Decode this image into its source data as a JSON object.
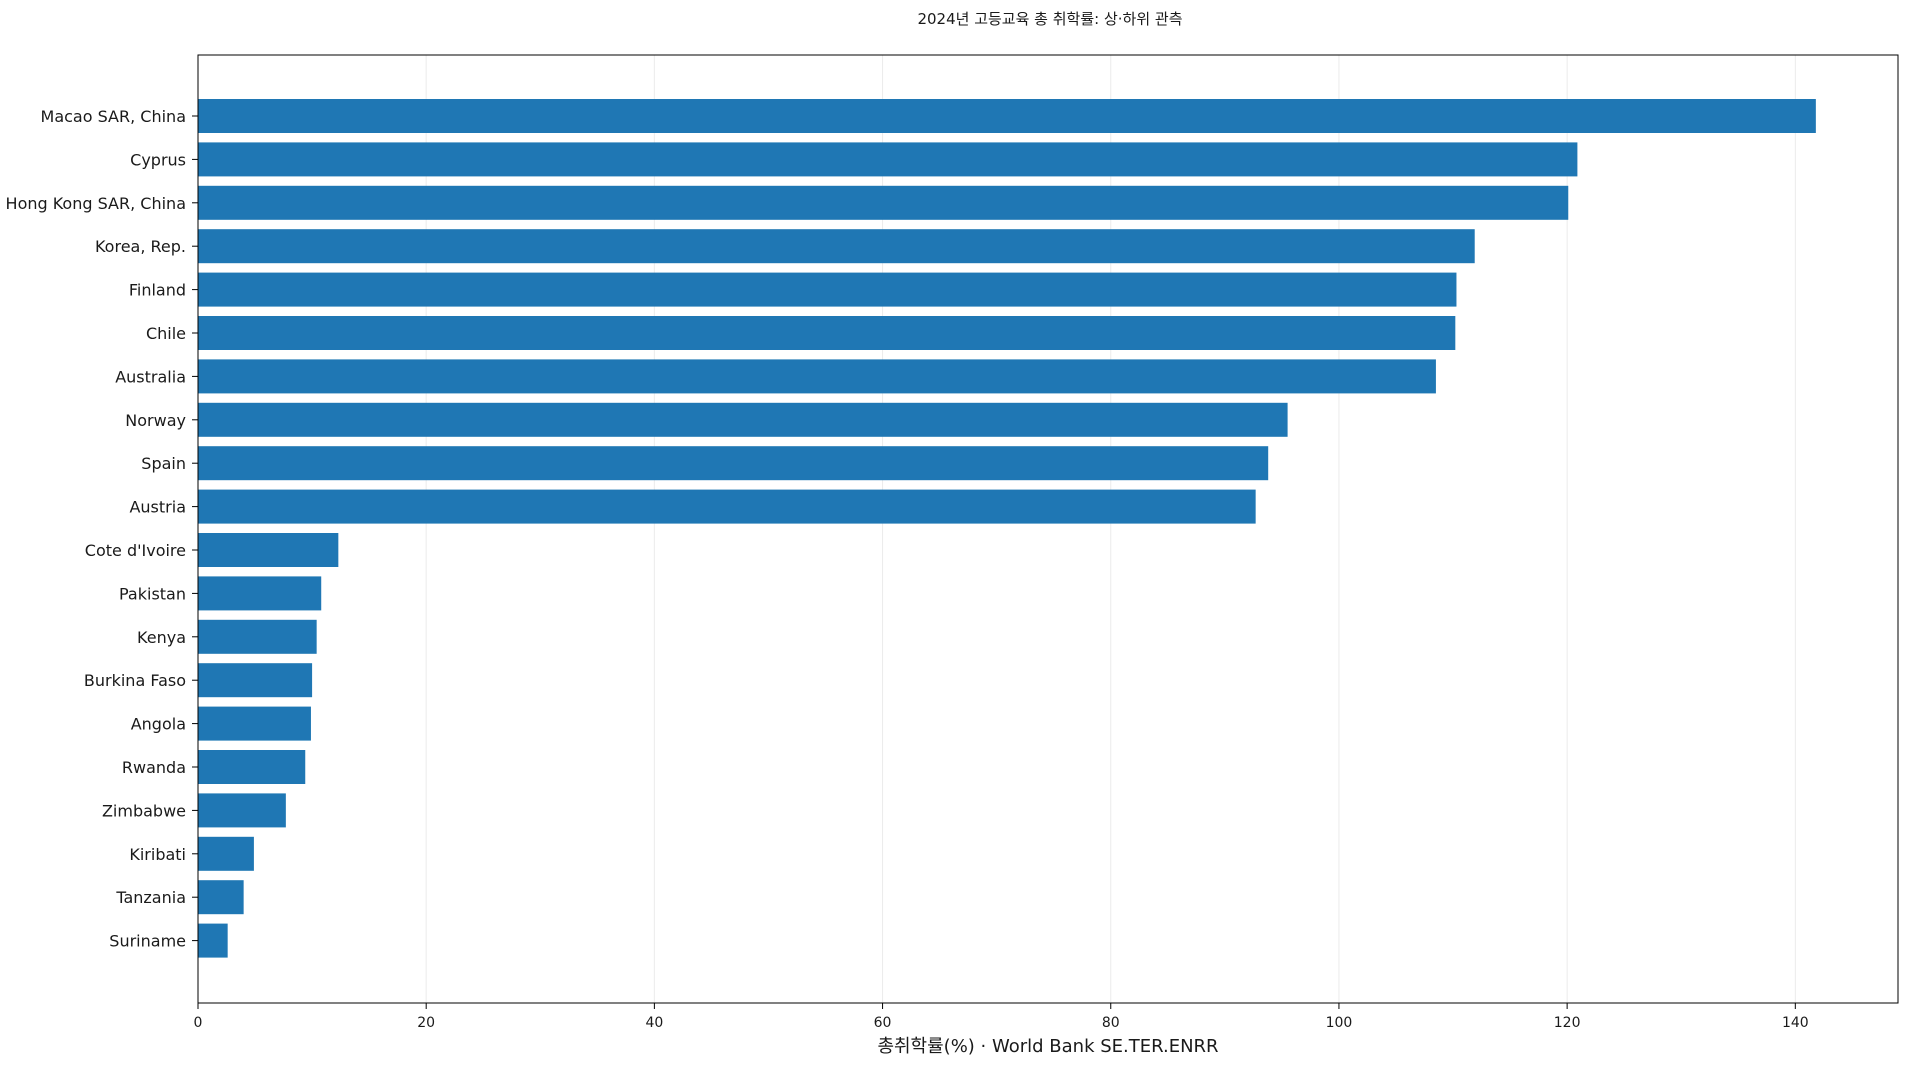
{
  "chart_data": {
    "type": "bar",
    "orientation": "horizontal",
    "title": "2024년 고등교육 총 취학률: 상·하위 관측",
    "xlabel": "총취학률(%) · World Bank SE.TER.ENRR",
    "ylabel": "",
    "xlim": [
      0,
      149
    ],
    "xticks": [
      0,
      20,
      40,
      60,
      80,
      100,
      120,
      140
    ],
    "grid": "vertical",
    "bar_color": "#1f77b4",
    "categories": [
      "Macao SAR, China",
      "Cyprus",
      "Hong Kong SAR, China",
      "Korea, Rep.",
      "Finland",
      "Chile",
      "Australia",
      "Norway",
      "Spain",
      "Austria",
      "Cote d'Ivoire",
      "Pakistan",
      "Kenya",
      "Burkina Faso",
      "Angola",
      "Rwanda",
      "Zimbabwe",
      "Kiribati",
      "Tanzania",
      "Suriname"
    ],
    "values": [
      141.8,
      120.9,
      120.1,
      111.9,
      110.3,
      110.2,
      108.5,
      95.5,
      93.8,
      92.7,
      12.3,
      10.8,
      10.4,
      10.0,
      9.9,
      9.4,
      7.7,
      4.9,
      4.0,
      2.6
    ]
  }
}
